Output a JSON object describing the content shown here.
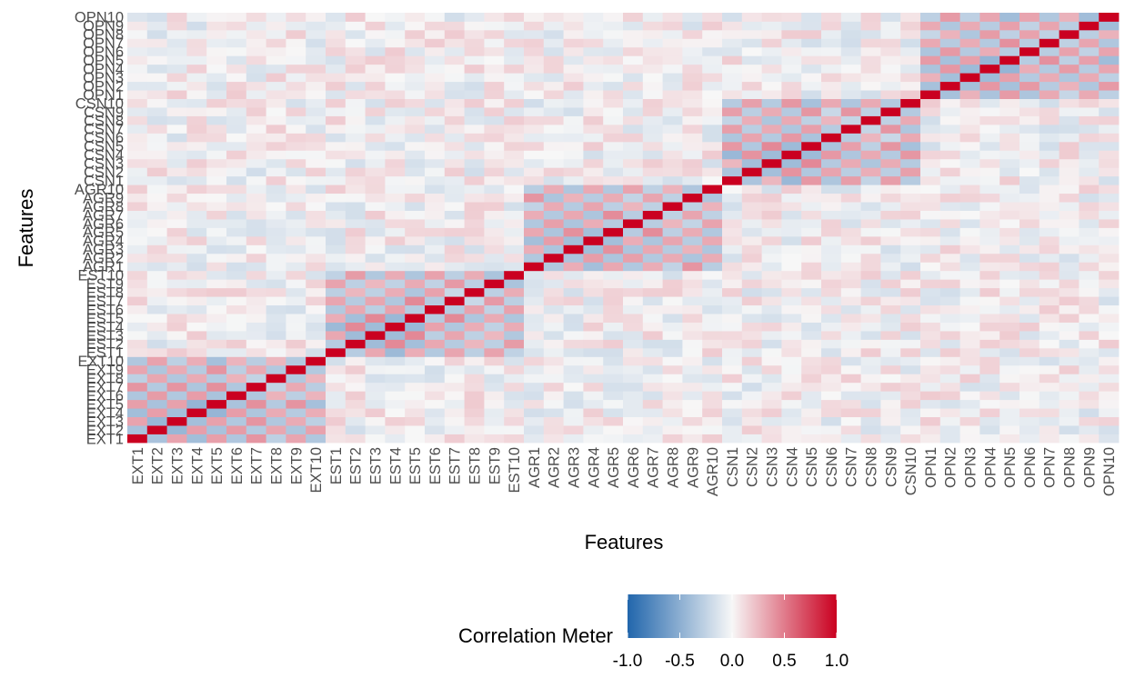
{
  "chart_data": {
    "type": "heatmap",
    "xlabel": "Features",
    "ylabel": "Features",
    "features": [
      "EXT1",
      "EXT2",
      "EXT3",
      "EXT4",
      "EXT5",
      "EXT6",
      "EXT7",
      "EXT8",
      "EXT9",
      "EXT10",
      "EST1",
      "EST2",
      "EST3",
      "EST4",
      "EST5",
      "EST6",
      "EST7",
      "EST8",
      "EST9",
      "EST10",
      "AGR1",
      "AGR2",
      "AGR3",
      "AGR4",
      "AGR5",
      "AGR6",
      "AGR7",
      "AGR8",
      "AGR9",
      "AGR10",
      "CSN1",
      "CSN2",
      "CSN3",
      "CSN4",
      "CSN5",
      "CSN6",
      "CSN7",
      "CSN8",
      "CSN9",
      "CSN10",
      "OPN1",
      "OPN2",
      "OPN3",
      "OPN4",
      "OPN5",
      "OPN6",
      "OPN7",
      "OPN8",
      "OPN9",
      "OPN10"
    ],
    "groups": [
      "EXT",
      "EST",
      "AGR",
      "CSN",
      "OPN"
    ],
    "within_group_matrix": [
      [
        1.0,
        -0.35,
        0.3,
        -0.4,
        0.35,
        -0.3,
        0.35,
        -0.25,
        0.35,
        -0.3
      ],
      [
        -0.35,
        1.0,
        -0.4,
        0.4,
        -0.35,
        0.35,
        -0.3,
        0.3,
        -0.3,
        0.35
      ],
      [
        0.3,
        -0.4,
        1.0,
        -0.4,
        0.4,
        -0.3,
        0.35,
        -0.3,
        0.3,
        -0.3
      ],
      [
        -0.4,
        0.4,
        -0.4,
        1.0,
        -0.4,
        0.35,
        -0.3,
        0.35,
        -0.3,
        0.35
      ],
      [
        0.35,
        -0.35,
        0.4,
        -0.4,
        1.0,
        -0.35,
        0.4,
        -0.3,
        0.35,
        -0.35
      ],
      [
        -0.3,
        0.35,
        -0.3,
        0.35,
        -0.35,
        1.0,
        -0.3,
        0.3,
        -0.25,
        0.3
      ],
      [
        0.35,
        -0.3,
        0.35,
        -0.3,
        0.4,
        -0.3,
        1.0,
        -0.25,
        0.35,
        -0.3
      ],
      [
        -0.25,
        0.3,
        -0.3,
        0.35,
        -0.3,
        0.3,
        -0.25,
        1.0,
        -0.3,
        0.3
      ],
      [
        0.35,
        -0.3,
        0.3,
        -0.3,
        0.35,
        -0.25,
        0.35,
        -0.3,
        1.0,
        -0.35
      ],
      [
        -0.3,
        0.35,
        -0.3,
        0.35,
        -0.35,
        0.3,
        -0.3,
        0.3,
        -0.35,
        1.0
      ]
    ],
    "colorbar": {
      "title": "Correlation Meter",
      "ticks": [
        "-1.0",
        "-0.5",
        "0.0",
        "0.5",
        "1.0"
      ],
      "range": [
        -1,
        1
      ],
      "low_color": "#2166AC",
      "mid_color": "#F7F7F7",
      "high_color": "#CA0020"
    },
    "legend_position": "bottom"
  }
}
